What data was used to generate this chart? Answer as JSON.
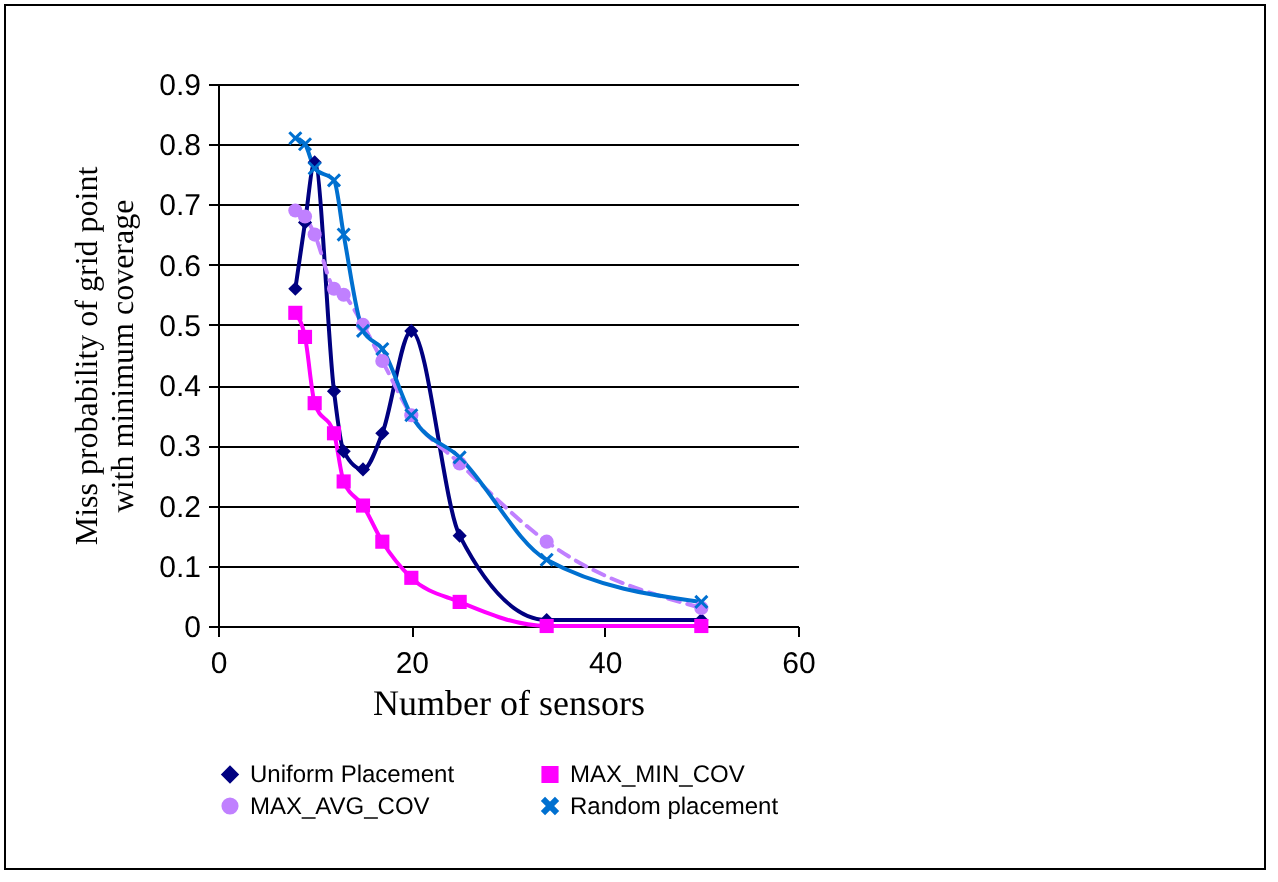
{
  "chart_data": {
    "type": "line",
    "xlabel": "Number of sensors",
    "ylabel": "Miss probability of grid point with minimum coverage",
    "x": [
      8,
      9,
      10,
      12,
      13,
      15,
      17,
      20,
      25,
      34,
      50
    ],
    "series": [
      {
        "name": "Uniform Placement",
        "color": "#000080",
        "marker": "diamond",
        "line_style": "solid",
        "values": [
          0.56,
          0.67,
          0.77,
          0.39,
          0.29,
          0.26,
          0.32,
          0.49,
          0.15,
          0.01,
          0.01
        ]
      },
      {
        "name": "MAX_MIN_COV",
        "color": "#ff00ff",
        "marker": "square",
        "line_style": "solid",
        "values": [
          0.52,
          0.48,
          0.37,
          0.32,
          0.24,
          0.2,
          0.14,
          0.08,
          0.04,
          0.0,
          0.0
        ]
      },
      {
        "name": "MAX_AVG_COV",
        "color": "#c080ff",
        "marker": "circle",
        "line_style": "dashed",
        "values": [
          0.69,
          0.68,
          0.65,
          0.56,
          0.55,
          0.5,
          0.44,
          0.35,
          0.27,
          0.14,
          0.03
        ]
      },
      {
        "name": "Random placement",
        "color": "#0070d0",
        "marker": "cross",
        "line_style": "solid",
        "values": [
          0.81,
          0.8,
          0.76,
          0.74,
          0.65,
          0.49,
          0.46,
          0.35,
          0.28,
          0.11,
          0.04
        ]
      }
    ],
    "xlim": [
      0,
      60
    ],
    "xticks": [
      0,
      20,
      40,
      60
    ],
    "ylim": [
      0,
      0.9
    ],
    "yticks": [
      0,
      0.1,
      0.2,
      0.3,
      0.4,
      0.5,
      0.6,
      0.7,
      0.8,
      0.9
    ],
    "grid": "y",
    "legend": "bottom"
  }
}
